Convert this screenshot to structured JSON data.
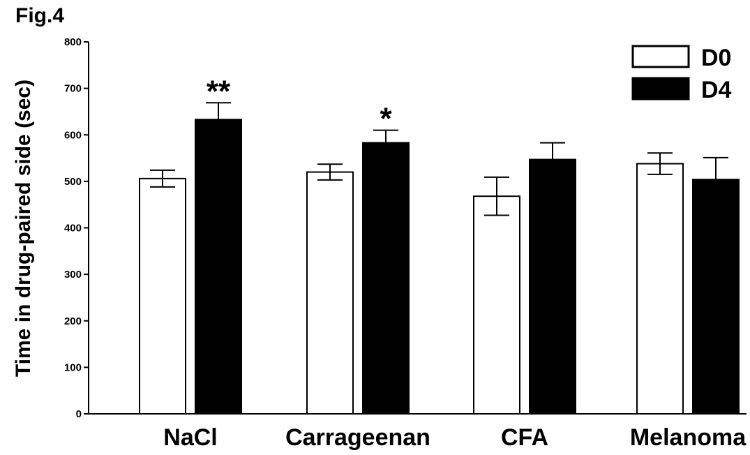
{
  "figure_label": "Fig.4",
  "chart_data": {
    "type": "bar",
    "title": "",
    "ylabel": "Time in drug-paired side (sec)",
    "xlabel": "",
    "ylim": [
      0,
      800
    ],
    "yticks": [
      0,
      100,
      200,
      300,
      400,
      500,
      600,
      700,
      800
    ],
    "categories": [
      "NaCl",
      "Carrageenan",
      "CFA",
      "Melanoma"
    ],
    "series": [
      {
        "name": "D0",
        "fill": "#ffffff",
        "values": [
          506,
          520,
          468,
          538
        ],
        "errors": [
          18,
          17,
          41,
          23
        ]
      },
      {
        "name": "D4",
        "fill": "#000000",
        "values": [
          633,
          583,
          547,
          504
        ],
        "errors": [
          36,
          27,
          36,
          47
        ]
      }
    ],
    "annotations": [
      {
        "category": "NaCl",
        "series": "D4",
        "text": "**"
      },
      {
        "category": "Carrageenan",
        "series": "D4",
        "text": "*"
      }
    ],
    "legend": "top-right",
    "grid": false
  }
}
